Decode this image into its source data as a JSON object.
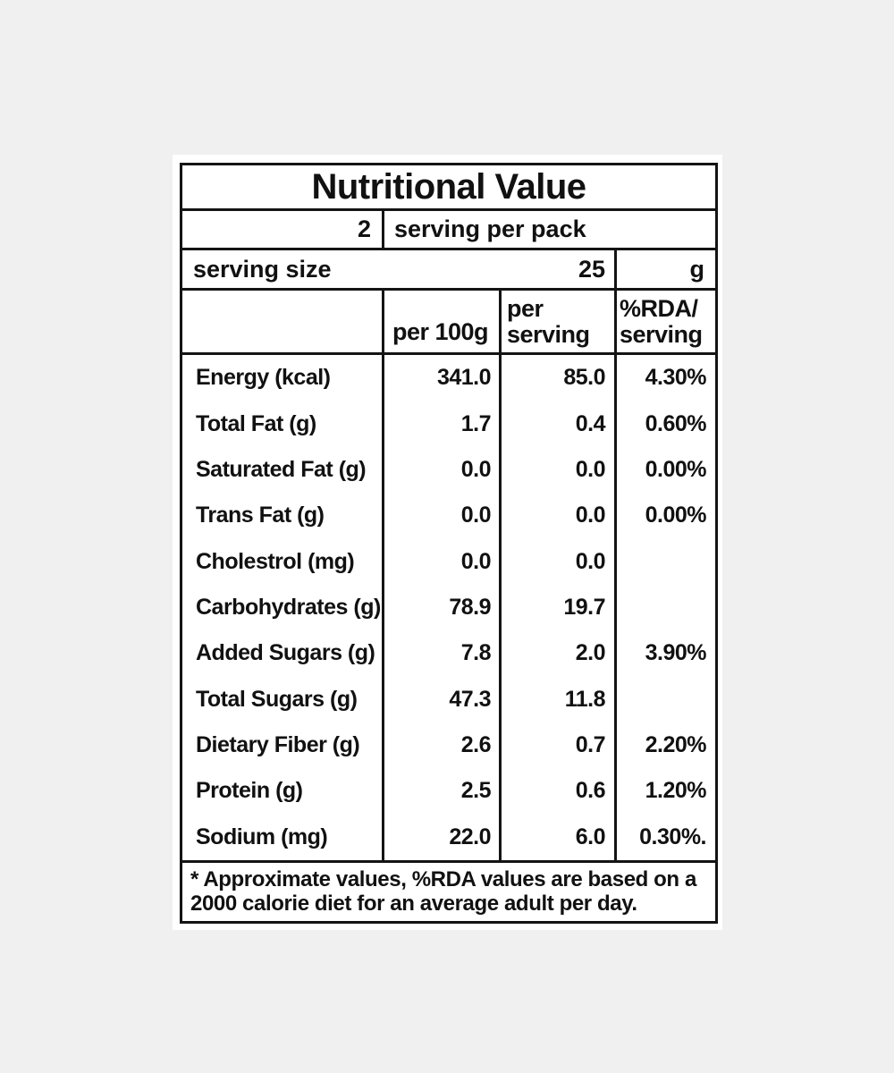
{
  "colors": {
    "page_background": "#f0f0f0",
    "card_background": "#ffffff",
    "line_color": "#141414",
    "text_color": "#111111"
  },
  "title": "Nutritional Value",
  "pack_row": {
    "count": "2",
    "text": "serving per pack"
  },
  "serving_size_row": {
    "label": "serving size",
    "value": "25",
    "unit": "g"
  },
  "column_headers": {
    "per_100g": "per 100g",
    "per_serving_line1": "per",
    "per_serving_line2": "serving",
    "rda_line1": "%RDA/",
    "rda_line2": "serving"
  },
  "rows": [
    {
      "label": "Energy (kcal)",
      "per_100g": "341.0",
      "per_serving": "85.0",
      "rda": "4.30%"
    },
    {
      "label": "Total Fat (g)",
      "per_100g": "1.7",
      "per_serving": "0.4",
      "rda": "0.60%"
    },
    {
      "label": "Saturated Fat (g)",
      "per_100g": "0.0",
      "per_serving": "0.0",
      "rda": "0.00%"
    },
    {
      "label": "Trans Fat (g)",
      "per_100g": "0.0",
      "per_serving": "0.0",
      "rda": "0.00%"
    },
    {
      "label": "Cholestrol (mg)",
      "per_100g": "0.0",
      "per_serving": "0.0",
      "rda": ""
    },
    {
      "label": "Carbohydrates (g)",
      "per_100g": "78.9",
      "per_serving": "19.7",
      "rda": ""
    },
    {
      "label": "Added Sugars (g)",
      "per_100g": "7.8",
      "per_serving": "2.0",
      "rda": "3.90%"
    },
    {
      "label": "Total Sugars (g)",
      "per_100g": "47.3",
      "per_serving": "11.8",
      "rda": ""
    },
    {
      "label": "Dietary Fiber (g)",
      "per_100g": "2.6",
      "per_serving": "0.7",
      "rda": "2.20%"
    },
    {
      "label": "Protein (g)",
      "per_100g": "2.5",
      "per_serving": "0.6",
      "rda": "1.20%"
    },
    {
      "label": "Sodium (mg)",
      "per_100g": "22.0",
      "per_serving": "6.0",
      "rda": "0.30%."
    }
  ],
  "footnote": {
    "line1": "* Approximate values, %RDA values are based on a",
    "line2": "2000 calorie diet for an average adult per day."
  }
}
